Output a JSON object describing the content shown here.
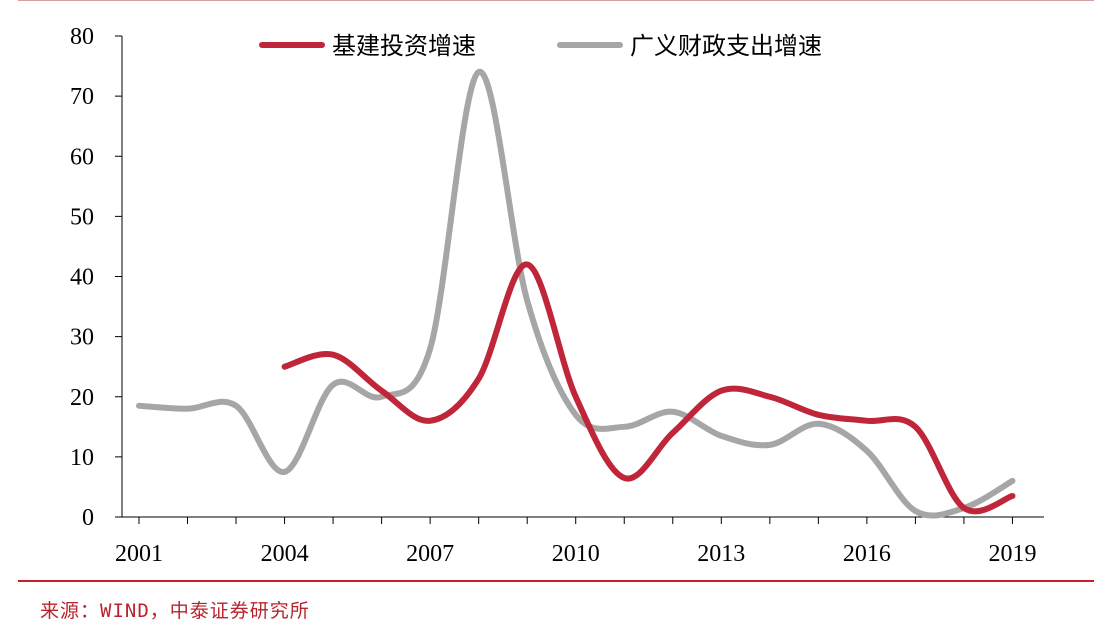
{
  "chart_data": {
    "type": "line",
    "title": "",
    "xlabel": "",
    "ylabel": "",
    "ylim": [
      0,
      80
    ],
    "y_ticks": [
      0,
      10,
      20,
      30,
      40,
      50,
      60,
      70,
      80
    ],
    "x_tick_labels": [
      "2001",
      "2004",
      "2007",
      "2010",
      "2013",
      "2016",
      "2019"
    ],
    "legend_position": "top-center",
    "grid": false,
    "series": [
      {
        "name": "基建投资增速",
        "color": "#c0263a",
        "x": [
          2004,
          2005,
          2006,
          2007,
          2008,
          2009,
          2010,
          2011,
          2012,
          2013,
          2014,
          2015,
          2016,
          2017,
          2018,
          2019
        ],
        "y": [
          25,
          27,
          21,
          16,
          23,
          42,
          20,
          6.5,
          14,
          21,
          20,
          17,
          16,
          15,
          1.5,
          3.5
        ]
      },
      {
        "name": "广义财政支出增速",
        "color": "#a6a6a6",
        "x": [
          2001,
          2002,
          2003,
          2004,
          2005,
          2006,
          2007,
          2008,
          2009,
          2010,
          2011,
          2012,
          2013,
          2014,
          2015,
          2016,
          2017,
          2018,
          2019
        ],
        "y": [
          18.5,
          18,
          18.5,
          7.5,
          22,
          20,
          28,
          74,
          36,
          17,
          15,
          17.5,
          13.5,
          12,
          15.5,
          11,
          1,
          1.5,
          6
        ]
      }
    ]
  },
  "source_note": "来源：WIND，中泰证券研究所"
}
